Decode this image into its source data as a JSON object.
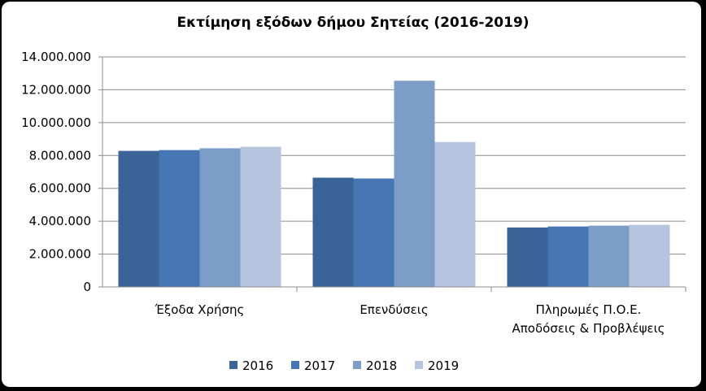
{
  "chart_data": {
    "type": "bar",
    "title": "Εκτίμηση εξόδων δήμου Σητείας (2016-2019)",
    "categories": [
      [
        "Έξοδα Χρήσης"
      ],
      [
        "Επενδύσεις"
      ],
      [
        "Πληρωμές Π.Ο.Ε.",
        "Αποδόσεις & Προβλέψεις"
      ]
    ],
    "series": [
      {
        "name": "2016",
        "color": "#3a6497",
        "values": [
          8280000,
          6650000,
          3620000
        ]
      },
      {
        "name": "2017",
        "color": "#4676b4",
        "values": [
          8330000,
          6600000,
          3680000
        ]
      },
      {
        "name": "2018",
        "color": "#7d9dc9",
        "values": [
          8440000,
          12550000,
          3730000
        ]
      },
      {
        "name": "2019",
        "color": "#b6c5df",
        "values": [
          8530000,
          8820000,
          3780000
        ]
      }
    ],
    "ylim": [
      0,
      14000000
    ],
    "y_ticks": [
      {
        "value": 0,
        "label": "0"
      },
      {
        "value": 2000000,
        "label": "2.000.000"
      },
      {
        "value": 4000000,
        "label": "4.000.000"
      },
      {
        "value": 6000000,
        "label": "6.000.000"
      },
      {
        "value": 8000000,
        "label": "8.000.000"
      },
      {
        "value": 10000000,
        "label": "10.000.000"
      },
      {
        "value": 12000000,
        "label": "12.000.000"
      },
      {
        "value": 14000000,
        "label": "14.000.000"
      }
    ],
    "grid": true,
    "legend": "bottom"
  }
}
